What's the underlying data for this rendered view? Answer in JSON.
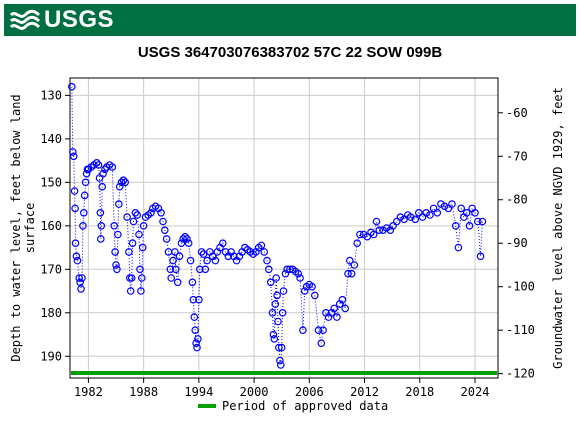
{
  "header": {
    "logo_text": "USGS",
    "logo_color": "#006f41"
  },
  "chart_data": {
    "type": "scatter",
    "title": "USGS 364703076383702 57C 22 SOW 099B",
    "ylabel_left": "Depth to water level, feet below land surface",
    "ylabel_left_lines": [
      "Depth to water level, feet below land",
      "surface"
    ],
    "ylabel_right": "Groundwater level above NGVD 1929, feet",
    "xlim": [
      1980.0,
      2026.5
    ],
    "ylim_left": [
      195,
      126
    ],
    "ylim_right": [
      -121,
      -52
    ],
    "y_inverted": true,
    "x_ticks": [
      1982,
      1988,
      1994,
      2000,
      2006,
      2012,
      2018,
      2024
    ],
    "x_tick_labels": [
      "1982",
      "1988",
      "1994",
      "2000",
      "2006",
      "2012",
      "2018",
      "2024"
    ],
    "y_left_ticks": [
      130,
      140,
      150,
      160,
      170,
      180,
      190
    ],
    "y_left_tick_labels": [
      "130",
      "140",
      "150",
      "160",
      "170",
      "180",
      "190"
    ],
    "y_right_ticks": [
      -60,
      -70,
      -80,
      -90,
      -100,
      -110,
      -120
    ],
    "y_right_tick_labels": [
      "-60",
      "-70",
      "-80",
      "-90",
      "-100",
      "-110",
      "-120"
    ],
    "grid": true,
    "series_color": "#0000ff",
    "approved_color": "#00a000",
    "approved_period": [
      1980.0,
      2026.5
    ],
    "legend": {
      "label": "Period of approved data",
      "placement": "bottom-center"
    },
    "points": [
      [
        1980.2,
        128
      ],
      [
        1980.3,
        143
      ],
      [
        1980.4,
        144
      ],
      [
        1980.5,
        152
      ],
      [
        1980.55,
        156
      ],
      [
        1980.6,
        164
      ],
      [
        1980.7,
        167
      ],
      [
        1980.8,
        168
      ],
      [
        1981.0,
        172
      ],
      [
        1981.1,
        173
      ],
      [
        1981.2,
        174.5
      ],
      [
        1981.3,
        172
      ],
      [
        1981.4,
        160
      ],
      [
        1981.5,
        157
      ],
      [
        1981.6,
        153
      ],
      [
        1981.7,
        150
      ],
      [
        1981.8,
        148
      ],
      [
        1981.9,
        147
      ],
      [
        1982.0,
        147
      ],
      [
        1982.3,
        146.5
      ],
      [
        1982.6,
        146
      ],
      [
        1982.9,
        145.5
      ],
      [
        1983.1,
        146
      ],
      [
        1983.2,
        149
      ],
      [
        1983.3,
        157
      ],
      [
        1983.35,
        163
      ],
      [
        1983.4,
        160
      ],
      [
        1983.5,
        151
      ],
      [
        1983.6,
        148
      ],
      [
        1983.8,
        147
      ],
      [
        1984.0,
        146.5
      ],
      [
        1984.3,
        146
      ],
      [
        1984.6,
        146.5
      ],
      [
        1984.8,
        160
      ],
      [
        1984.9,
        166
      ],
      [
        1985.0,
        169
      ],
      [
        1985.1,
        170
      ],
      [
        1985.2,
        162
      ],
      [
        1985.3,
        155
      ],
      [
        1985.4,
        151
      ],
      [
        1985.6,
        150
      ],
      [
        1985.8,
        149.5
      ],
      [
        1986.0,
        150
      ],
      [
        1986.2,
        158
      ],
      [
        1986.4,
        166
      ],
      [
        1986.5,
        172
      ],
      [
        1986.6,
        175
      ],
      [
        1986.7,
        172
      ],
      [
        1986.8,
        164
      ],
      [
        1986.9,
        159
      ],
      [
        1987.1,
        157
      ],
      [
        1987.3,
        157.5
      ],
      [
        1987.5,
        162
      ],
      [
        1987.6,
        170
      ],
      [
        1987.7,
        175
      ],
      [
        1987.8,
        172
      ],
      [
        1987.9,
        165
      ],
      [
        1988.0,
        160
      ],
      [
        1988.2,
        158
      ],
      [
        1988.5,
        157.5
      ],
      [
        1988.8,
        157
      ],
      [
        1989.0,
        156
      ],
      [
        1989.3,
        155.5
      ],
      [
        1989.6,
        156
      ],
      [
        1989.9,
        157
      ],
      [
        1990.1,
        159
      ],
      [
        1990.3,
        161
      ],
      [
        1990.5,
        163
      ],
      [
        1990.7,
        166
      ],
      [
        1990.9,
        170
      ],
      [
        1991.0,
        172
      ],
      [
        1991.2,
        168
      ],
      [
        1991.4,
        166
      ],
      [
        1991.5,
        170
      ],
      [
        1991.7,
        173
      ],
      [
        1991.9,
        167
      ],
      [
        1992.1,
        164
      ],
      [
        1992.3,
        163
      ],
      [
        1992.5,
        162.5
      ],
      [
        1992.7,
        163
      ],
      [
        1992.9,
        164
      ],
      [
        1993.1,
        168
      ],
      [
        1993.3,
        173
      ],
      [
        1993.4,
        177
      ],
      [
        1993.5,
        181
      ],
      [
        1993.6,
        184
      ],
      [
        1993.7,
        187
      ],
      [
        1993.8,
        188
      ],
      [
        1993.9,
        186
      ],
      [
        1994.0,
        177
      ],
      [
        1994.1,
        170
      ],
      [
        1994.3,
        166
      ],
      [
        1994.5,
        166.5
      ],
      [
        1994.7,
        170
      ],
      [
        1994.9,
        168
      ],
      [
        1995.2,
        166
      ],
      [
        1995.5,
        167
      ],
      [
        1995.8,
        168
      ],
      [
        1996.0,
        166
      ],
      [
        1996.3,
        165
      ],
      [
        1996.6,
        164
      ],
      [
        1996.9,
        166
      ],
      [
        1997.2,
        167
      ],
      [
        1997.5,
        166
      ],
      [
        1997.8,
        167
      ],
      [
        1998.1,
        168
      ],
      [
        1998.4,
        167
      ],
      [
        1998.7,
        166
      ],
      [
        1999.0,
        165
      ],
      [
        1999.3,
        165.5
      ],
      [
        1999.6,
        166
      ],
      [
        1999.9,
        166.5
      ],
      [
        2000.2,
        166
      ],
      [
        2000.5,
        165
      ],
      [
        2000.8,
        164.5
      ],
      [
        2001.1,
        166
      ],
      [
        2001.4,
        168
      ],
      [
        2001.6,
        170
      ],
      [
        2001.8,
        173
      ],
      [
        2002.0,
        180
      ],
      [
        2002.1,
        185
      ],
      [
        2002.2,
        186
      ],
      [
        2002.3,
        178
      ],
      [
        2002.4,
        172
      ],
      [
        2002.5,
        176
      ],
      [
        2002.6,
        182
      ],
      [
        2002.7,
        188
      ],
      [
        2002.8,
        191
      ],
      [
        2002.9,
        192
      ],
      [
        2003.0,
        188
      ],
      [
        2003.1,
        180
      ],
      [
        2003.2,
        175
      ],
      [
        2003.4,
        171
      ],
      [
        2003.6,
        170
      ],
      [
        2003.9,
        170
      ],
      [
        2004.2,
        170
      ],
      [
        2004.5,
        170.5
      ],
      [
        2004.8,
        171
      ],
      [
        2005.0,
        172
      ],
      [
        2005.3,
        184
      ],
      [
        2005.5,
        175
      ],
      [
        2005.7,
        174
      ],
      [
        2006.0,
        173.5
      ],
      [
        2006.3,
        174
      ],
      [
        2006.6,
        176
      ],
      [
        2007.0,
        184
      ],
      [
        2007.3,
        187
      ],
      [
        2007.5,
        184
      ],
      [
        2007.8,
        180
      ],
      [
        2008.1,
        181
      ],
      [
        2008.4,
        180
      ],
      [
        2008.7,
        179
      ],
      [
        2009.0,
        181
      ],
      [
        2009.3,
        178
      ],
      [
        2009.6,
        177
      ],
      [
        2009.9,
        179
      ],
      [
        2010.2,
        171
      ],
      [
        2010.4,
        168
      ],
      [
        2010.6,
        171
      ],
      [
        2010.9,
        169
      ],
      [
        2011.2,
        164
      ],
      [
        2011.5,
        162
      ],
      [
        2011.9,
        162
      ],
      [
        2012.3,
        162.5
      ],
      [
        2012.7,
        161.5
      ],
      [
        2013.0,
        162
      ],
      [
        2013.3,
        159
      ],
      [
        2013.6,
        161
      ],
      [
        2014.0,
        161
      ],
      [
        2014.4,
        160.5
      ],
      [
        2014.8,
        161
      ],
      [
        2015.1,
        160
      ],
      [
        2015.5,
        159
      ],
      [
        2015.9,
        158
      ],
      [
        2016.3,
        158.5
      ],
      [
        2016.7,
        157.5
      ],
      [
        2017.0,
        158
      ],
      [
        2017.5,
        158.5
      ],
      [
        2017.9,
        157
      ],
      [
        2018.3,
        158
      ],
      [
        2018.7,
        157
      ],
      [
        2019.1,
        157.5
      ],
      [
        2019.5,
        156
      ],
      [
        2019.9,
        157
      ],
      [
        2020.3,
        155
      ],
      [
        2020.7,
        155.5
      ],
      [
        2021.1,
        156
      ],
      [
        2021.5,
        155
      ],
      [
        2021.9,
        160
      ],
      [
        2022.2,
        165
      ],
      [
        2022.5,
        156
      ],
      [
        2022.8,
        158
      ],
      [
        2023.1,
        157
      ],
      [
        2023.4,
        160
      ],
      [
        2023.7,
        156
      ],
      [
        2024.0,
        157
      ],
      [
        2024.3,
        159
      ],
      [
        2024.6,
        167
      ],
      [
        2024.8,
        159
      ]
    ]
  }
}
